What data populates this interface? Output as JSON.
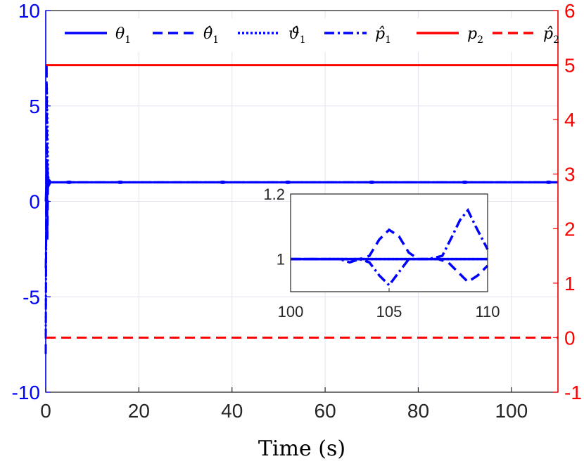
{
  "chart_data": {
    "type": "line",
    "xlabel": "Time (s)",
    "x_ticks": [
      "0",
      "20",
      "40",
      "60",
      "80",
      "100"
    ],
    "xlim": [
      0,
      110
    ],
    "left_axis": {
      "ylim": [
        -10,
        10
      ],
      "ticks": [
        "-10",
        "-5",
        "0",
        "5",
        "10"
      ],
      "color": "#0000ff"
    },
    "right_axis": {
      "ylim": [
        -1,
        6
      ],
      "ticks": [
        "-1",
        "0",
        "1",
        "2",
        "3",
        "4",
        "5",
        "6"
      ],
      "color": "#ff0000"
    },
    "grid": true,
    "legend": {
      "position": "top",
      "entries": [
        {
          "base": "θ",
          "sub": "1",
          "style": "solid",
          "color": "#0000ff"
        },
        {
          "base": "θ̂",
          "sub": "1",
          "style": "dashed",
          "color": "#0000ff"
        },
        {
          "base": "ϑ̂",
          "sub": "1",
          "style": "dotted",
          "color": "#0000ff"
        },
        {
          "base": "p̂",
          "sub": "1",
          "style": "dashdot",
          "color": "#0000ff"
        },
        {
          "base": "p",
          "sub": "2",
          "style": "solid",
          "color": "#ff0000"
        },
        {
          "base": "p̂",
          "sub": "2",
          "style": "dashed",
          "color": "#ff0000"
        }
      ]
    },
    "series": [
      {
        "axis": "left",
        "style": "solid",
        "color": "#0000ff",
        "x": [
          0,
          0.3,
          0.5,
          1,
          110
        ],
        "y": [
          0,
          2,
          1.2,
          1,
          1
        ]
      },
      {
        "axis": "left",
        "style": "dashed",
        "color": "#0000ff",
        "x": [
          0,
          0.2,
          0.35,
          0.5,
          1,
          110
        ],
        "y": [
          -8,
          7.2,
          -2,
          1.1,
          1,
          1
        ]
      },
      {
        "axis": "left",
        "style": "dotted",
        "color": "#0000ff",
        "x": [
          0,
          0.25,
          0.5,
          1,
          110
        ],
        "y": [
          -7,
          6,
          1.3,
          1,
          1
        ]
      },
      {
        "axis": "left",
        "style": "dashdot",
        "color": "#0000ff",
        "x": [
          0,
          0.3,
          0.6,
          1,
          110
        ],
        "y": [
          -3.5,
          1.8,
          0.8,
          1,
          1
        ]
      },
      {
        "axis": "right",
        "style": "solid",
        "color": "#ff0000",
        "x": [
          0,
          110
        ],
        "y": [
          5,
          5
        ]
      },
      {
        "axis": "right",
        "style": "dashed",
        "color": "#ff0000",
        "x": [
          0,
          110
        ],
        "y": [
          0,
          0
        ]
      }
    ],
    "inset": {
      "xlim": [
        100,
        110
      ],
      "ylim": [
        0.9,
        1.2
      ],
      "x_ticks": [
        "100",
        "105",
        "110"
      ],
      "y_ticks": [
        "1",
        "1.2"
      ],
      "series": [
        {
          "style": "solid",
          "color": "#0000ff",
          "x": [
            100,
            110
          ],
          "y": [
            1,
            1
          ]
        },
        {
          "style": "dashed",
          "color": "#0000ff",
          "x": [
            100,
            102.5,
            103.5,
            104,
            104.5,
            105,
            105.5,
            106,
            106.5,
            107.5,
            108,
            108.5,
            109,
            109.5,
            110
          ],
          "y": [
            1,
            1,
            1,
            1.01,
            1.06,
            1.09,
            1.07,
            1.02,
            1,
            1,
            0.99,
            0.96,
            0.93,
            0.95,
            0.98
          ]
        },
        {
          "style": "dashdot",
          "color": "#0000ff",
          "x": [
            100,
            102.5,
            103,
            103.5,
            104,
            104.5,
            105,
            105.5,
            106,
            107,
            107.7,
            108.2,
            108.6,
            109,
            109.4,
            110
          ],
          "y": [
            1,
            1,
            0.99,
            1,
            0.99,
            0.95,
            0.92,
            0.96,
            1,
            1,
            1.01,
            1.07,
            1.12,
            1.15,
            1.1,
            1.03
          ]
        },
        {
          "style": "dotted",
          "color": "#0000ff",
          "x": [
            100,
            105,
            110
          ],
          "y": [
            1,
            1,
            1
          ]
        }
      ]
    }
  }
}
